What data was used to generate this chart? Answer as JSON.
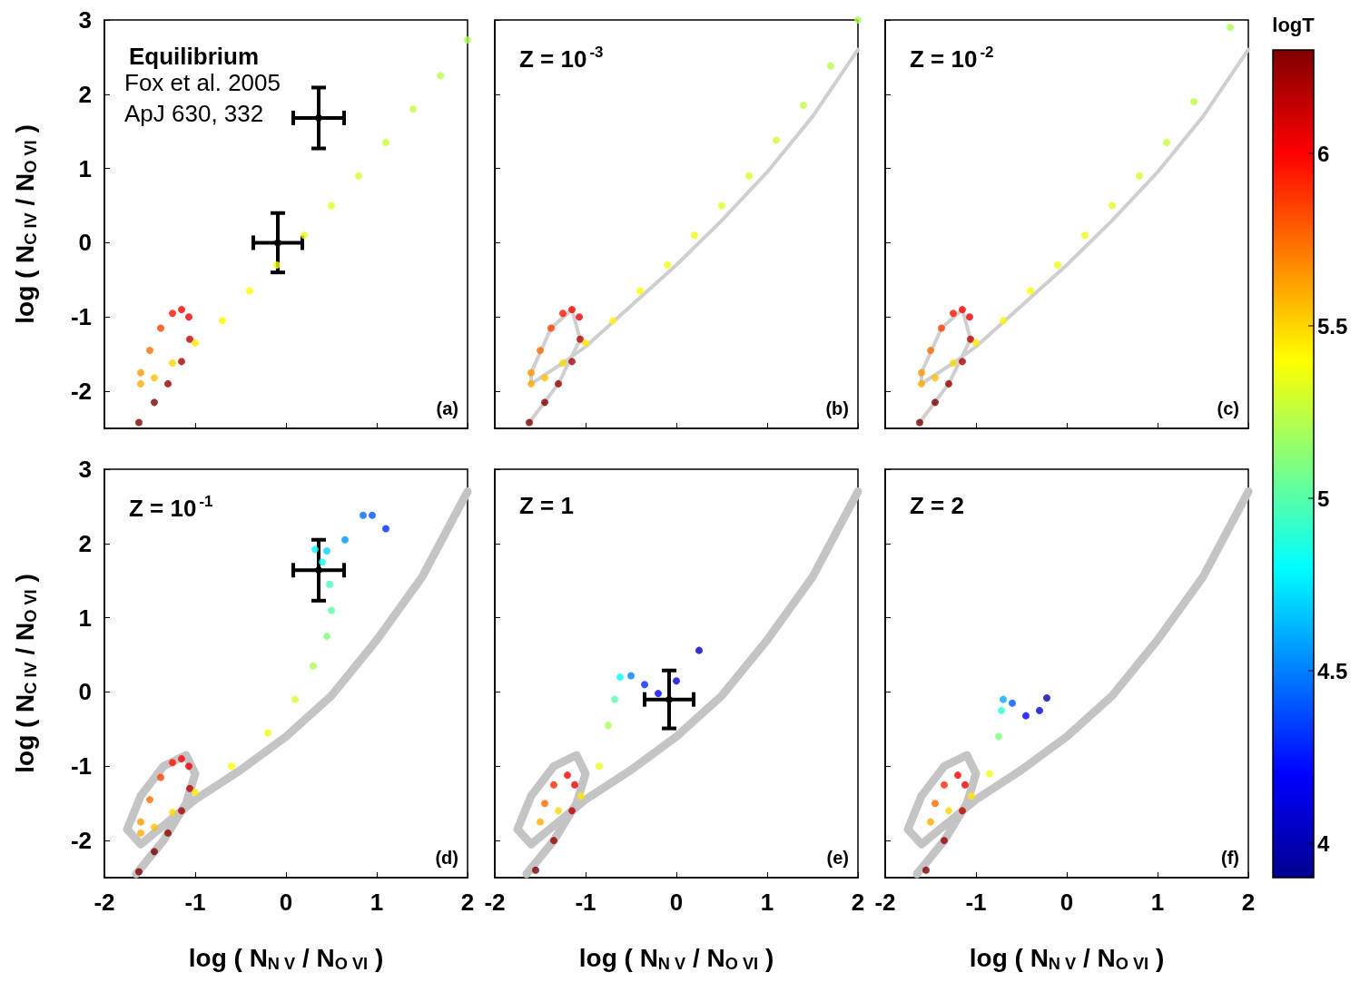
{
  "chart_data": [
    {
      "type": "scatter",
      "title": "Equilibrium",
      "ylabel": "log ( N$_{C IV}$ / N$_{O VI}$ )",
      "xlim": [
        -2,
        2
      ],
      "ylim": [
        -2.5,
        3
      ],
      "xticks": [
        -2,
        -1,
        0,
        1,
        2
      ],
      "yticks": [
        -2,
        -1,
        0,
        1,
        2,
        3
      ],
      "tick_labels": "y",
      "annotations": [
        "(a)",
        "Fox et al. 2005\nApJ 630, 332"
      ],
      "series": [
        {
          "type": "scatter",
          "marker": "circle",
          "x": [
            -1.62,
            -1.45,
            -1.3,
            -1.15,
            -1.06,
            -1.07,
            -1.15,
            -1.25,
            -1.38,
            -1.5,
            -1.6,
            -1.6,
            -1.45,
            -1.25,
            -1.0,
            -0.7,
            -0.4,
            -0.1,
            0.2,
            0.5,
            0.8,
            1.1,
            1.4,
            1.7,
            2.0
          ],
          "values": [
            -2.42,
            -2.15,
            -1.9,
            -1.6,
            -1.3,
            -1.0,
            -0.9,
            -0.95,
            -1.15,
            -1.45,
            -1.75,
            -1.9,
            -1.82,
            -1.62,
            -1.35,
            -1.05,
            -0.65,
            -0.3,
            0.1,
            0.5,
            0.9,
            1.35,
            1.8,
            2.25,
            2.73
          ],
          "colors": [
            "#800000",
            "#800000",
            "#950000",
            "#aa0000",
            "#bf0000",
            "#ea0000",
            "#ff0000",
            "#ff1500",
            "#ff4000",
            "#ff6a00",
            "#ff9500",
            "#ffaa00",
            "#ffbf00",
            "#ffd500",
            "#ffea00",
            "#fff700",
            "#ffff00",
            "#f2ff0d",
            "#eaff15",
            "#e1ff1e",
            "#d5ff2b",
            "#ccff33",
            "#bfff40",
            "#b3ff4d",
            "#aaff55"
          ]
        },
        {
          "type": "scatter",
          "marker": "circle",
          "color": "#000000",
          "x": [
            0.36,
            -0.09
          ],
          "values": [
            1.68,
            0
          ],
          "errors": [
            0.41,
            0.4
          ],
          "xerrors": [
            0.28,
            0.27
          ]
        }
      ]
    },
    {
      "type": "scatter",
      "title": "Z = 10$^{-3}$",
      "xlim": [
        -2,
        2
      ],
      "ylim": [
        -2.5,
        3
      ],
      "xticks": [
        -2,
        -1,
        0,
        1,
        2
      ],
      "yticks": [
        -2,
        -1,
        0,
        1,
        2,
        3
      ],
      "tick_labels": false,
      "annotations": [
        "(b)"
      ],
      "series": [
        {
          "type": "line",
          "color": "#cfcfcf",
          "x": [
            -1.62,
            -1.3,
            -1.06,
            -1.15,
            -1.38,
            -1.6,
            -1.6,
            -1.25,
            -1.0,
            -0.5,
            0,
            0.5,
            1.0,
            1.5,
            2.0
          ],
          "values": [
            -2.42,
            -1.9,
            -1.3,
            -0.9,
            -1.15,
            -1.75,
            -1.9,
            -1.62,
            -1.4,
            -0.85,
            -0.3,
            0.3,
            0.95,
            1.7,
            2.6
          ]
        },
        {
          "type": "scatter",
          "marker": "circle",
          "x": [
            -1.62,
            -1.45,
            -1.3,
            -1.15,
            -1.06,
            -1.07,
            -1.15,
            -1.25,
            -1.38,
            -1.5,
            -1.6,
            -1.6,
            -1.45,
            -1.25,
            -1.0,
            -0.7,
            -0.4,
            -0.1,
            0.2,
            0.5,
            0.8,
            1.1,
            1.4,
            1.7,
            2.0
          ],
          "values": [
            -2.42,
            -2.15,
            -1.9,
            -1.6,
            -1.3,
            -1.0,
            -0.9,
            -0.95,
            -1.15,
            -1.45,
            -1.75,
            -1.9,
            -1.82,
            -1.62,
            -1.35,
            -1.05,
            -0.65,
            -0.3,
            0.1,
            0.5,
            0.9,
            1.38,
            1.85,
            2.38,
            3.0
          ],
          "colors": [
            "#800000",
            "#800000",
            "#950000",
            "#aa0000",
            "#bf0000",
            "#ea0000",
            "#ff0000",
            "#ff1500",
            "#ff4000",
            "#ff6a00",
            "#ff9500",
            "#ffaa00",
            "#ffbf00",
            "#ffd500",
            "#ffea00",
            "#fff700",
            "#ffff00",
            "#f2ff0d",
            "#eaff15",
            "#e1ff1e",
            "#d5ff2b",
            "#ccff33",
            "#bfff40",
            "#b3ff4d",
            "#aaff55"
          ]
        }
      ]
    },
    {
      "type": "scatter",
      "title": "Z = 10$^{-2}$",
      "xlim": [
        -2,
        2
      ],
      "ylim": [
        -2.5,
        3
      ],
      "xticks": [
        -2,
        -1,
        0,
        1,
        2
      ],
      "yticks": [
        -2,
        -1,
        0,
        1,
        2,
        3
      ],
      "tick_labels": false,
      "clim": [
        3.9,
        6.3
      ],
      "clabel": "logT",
      "cticks": [
        4,
        4.5,
        5,
        5.5,
        6
      ],
      "annotations": [
        "(c)"
      ],
      "series": [
        {
          "type": "line",
          "color": "#cfcfcf",
          "x": [
            -1.62,
            -1.3,
            -1.06,
            -1.15,
            -1.38,
            -1.6,
            -1.6,
            -1.25,
            -1.0,
            -0.5,
            0,
            0.5,
            1.0,
            1.5,
            2.0
          ],
          "values": [
            -2.42,
            -1.9,
            -1.3,
            -0.9,
            -1.15,
            -1.75,
            -1.9,
            -1.62,
            -1.4,
            -0.85,
            -0.3,
            0.3,
            0.95,
            1.7,
            2.6
          ]
        },
        {
          "type": "scatter",
          "marker": "circle",
          "x": [
            -1.62,
            -1.45,
            -1.3,
            -1.15,
            -1.06,
            -1.07,
            -1.15,
            -1.25,
            -1.38,
            -1.5,
            -1.6,
            -1.6,
            -1.45,
            -1.25,
            -1.0,
            -0.7,
            -0.4,
            -0.1,
            0.2,
            0.5,
            0.8,
            1.1,
            1.4,
            1.8
          ],
          "values": [
            -2.42,
            -2.15,
            -1.9,
            -1.6,
            -1.3,
            -1.0,
            -0.9,
            -0.95,
            -1.15,
            -1.45,
            -1.75,
            -1.9,
            -1.82,
            -1.62,
            -1.35,
            -1.05,
            -0.65,
            -0.3,
            0.1,
            0.5,
            0.9,
            1.35,
            1.9,
            2.9
          ],
          "colors": [
            "#800000",
            "#800000",
            "#950000",
            "#aa0000",
            "#bf0000",
            "#ea0000",
            "#ff0000",
            "#ff1500",
            "#ff4000",
            "#ff6a00",
            "#ff9500",
            "#ffaa00",
            "#ffbf00",
            "#ffd500",
            "#ffea00",
            "#fff700",
            "#ffff00",
            "#f2ff0d",
            "#eaff15",
            "#e1ff1e",
            "#d5ff2b",
            "#ccff33",
            "#bfff40",
            "#aaff55"
          ]
        }
      ]
    },
    {
      "type": "scatter",
      "title": "Z = 10$^{-1}$",
      "xlabel": "log ( N$_{N V}$ / N$_{O VI}$ )",
      "ylabel": "log ( N$_{C IV}$ / N$_{O VI}$ )",
      "xlim": [
        -2,
        2
      ],
      "ylim": [
        -2.5,
        3
      ],
      "xticks": [
        -2,
        -1,
        0,
        1,
        2
      ],
      "yticks": [
        -2,
        -1,
        0,
        1,
        2,
        3
      ],
      "annotations": [
        "(d)"
      ],
      "series": [
        {
          "type": "line",
          "color": "#c4c4c4",
          "x": [
            -1.65,
            -1.35,
            -1.1,
            -1.0,
            -1.1,
            -1.35,
            -1.6,
            -1.75,
            -1.6,
            -1.3,
            -1.0,
            -0.5,
            0,
            0.5,
            1.0,
            1.5,
            2.0
          ],
          "values": [
            -2.45,
            -2.0,
            -1.5,
            -1.1,
            -0.85,
            -1.0,
            -1.4,
            -1.85,
            -2.05,
            -1.75,
            -1.45,
            -1.05,
            -0.6,
            -0.05,
            0.7,
            1.55,
            2.7
          ]
        },
        {
          "type": "scatter",
          "marker": "circle",
          "x": [
            -1.62,
            -1.45,
            -1.3,
            -1.15,
            -1.06,
            -1.07,
            -1.15,
            -1.25,
            -1.38,
            -1.5,
            -1.6,
            -1.6,
            -1.45,
            -1.25,
            -1.0,
            -0.6,
            -0.2,
            0.1,
            0.3,
            0.45,
            0.5,
            0.48,
            0.4,
            0.32,
            0.45,
            0.65,
            0.85,
            0.95,
            1.1
          ],
          "values": [
            -2.42,
            -2.15,
            -1.9,
            -1.6,
            -1.3,
            -1.0,
            -0.9,
            -0.95,
            -1.15,
            -1.45,
            -1.75,
            -1.9,
            -1.82,
            -1.62,
            -1.35,
            -1.0,
            -0.55,
            -0.1,
            0.35,
            0.75,
            1.1,
            1.45,
            1.75,
            1.92,
            1.9,
            2.05,
            2.38,
            2.38,
            2.2
          ],
          "colors": [
            "#800000",
            "#800000",
            "#950000",
            "#aa0000",
            "#bf0000",
            "#ea0000",
            "#ff0000",
            "#ff1500",
            "#ff4000",
            "#ff6a00",
            "#ff9500",
            "#ffaa00",
            "#ffbf00",
            "#ffd500",
            "#ffea00",
            "#ffff00",
            "#eaff15",
            "#d5ff2b",
            "#aaff55",
            "#80ff80",
            "#55ffaa",
            "#40ffbf",
            "#15ffea",
            "#00ffff",
            "#00d5ff",
            "#0095ff",
            "#006aff",
            "#0055ff",
            "#002bff"
          ]
        },
        {
          "type": "scatter",
          "marker": "circle",
          "color": "#000000",
          "x": [
            0.36
          ],
          "values": [
            1.64
          ],
          "errors": [
            0.41
          ],
          "xerrors": [
            0.28
          ]
        }
      ]
    },
    {
      "type": "scatter",
      "title": "Z = 1",
      "xlabel": "log ( N$_{N V}$ / N$_{O VI}$ )",
      "xlim": [
        -2,
        2
      ],
      "ylim": [
        -2.5,
        3
      ],
      "xticks": [
        -2,
        -1,
        0,
        1,
        2
      ],
      "yticks": [
        -2,
        -1,
        0,
        1,
        2,
        3
      ],
      "tick_labels": "x",
      "annotations": [
        "(e)"
      ],
      "series": [
        {
          "type": "line",
          "color": "#c4c4c4",
          "x": [
            -1.65,
            -1.35,
            -1.1,
            -1.0,
            -1.1,
            -1.35,
            -1.6,
            -1.75,
            -1.6,
            -1.3,
            -1.0,
            -0.5,
            0,
            0.5,
            1.0,
            1.5,
            2.0
          ],
          "values": [
            -2.45,
            -2.0,
            -1.5,
            -1.1,
            -0.85,
            -1.0,
            -1.4,
            -1.85,
            -2.05,
            -1.75,
            -1.45,
            -1.05,
            -0.6,
            -0.05,
            0.7,
            1.55,
            2.7
          ]
        },
        {
          "type": "scatter",
          "marker": "circle",
          "x": [
            -1.55,
            -1.35,
            -1.15,
            -1.12,
            -1.2,
            -1.35,
            -1.45,
            -1.5,
            -1.3,
            -1.05,
            -0.85,
            -0.75,
            -0.68,
            -0.62,
            -0.5,
            -0.35,
            -0.2,
            0.0,
            0.25
          ],
          "values": [
            -2.4,
            -2.0,
            -1.6,
            -1.25,
            -1.12,
            -1.25,
            -1.5,
            -1.75,
            -1.6,
            -1.4,
            -1.0,
            -0.45,
            -0.1,
            0.2,
            0.22,
            0.1,
            -0.02,
            0.15,
            0.56
          ],
          "colors": [
            "#800000",
            "#950000",
            "#bf0000",
            "#ea0000",
            "#ff0000",
            "#ff2b00",
            "#ff6a00",
            "#ffaa00",
            "#ffd500",
            "#ffea00",
            "#eaff15",
            "#aaff55",
            "#55ffaa",
            "#00ffff",
            "#0080ff",
            "#002bff",
            "#0000ff",
            "#0000da",
            "#0000c7"
          ]
        },
        {
          "type": "scatter",
          "marker": "circle",
          "color": "#000000",
          "x": [
            -0.08
          ],
          "values": [
            -0.1
          ],
          "errors": [
            0.39
          ],
          "xerrors": [
            0.27
          ]
        }
      ]
    },
    {
      "type": "scatter",
      "title": "Z = 2",
      "xlabel": "log ( N$_{N V}$ / N$_{O VI}$ )",
      "xlim": [
        -2,
        2
      ],
      "ylim": [
        -2.5,
        3
      ],
      "xticks": [
        -2,
        -1,
        0,
        1,
        2
      ],
      "yticks": [
        -2,
        -1,
        0,
        1,
        2,
        3
      ],
      "tick_labels": "x",
      "annotations": [
        "(f)"
      ],
      "series": [
        {
          "type": "line",
          "color": "#c4c4c4",
          "x": [
            -1.65,
            -1.35,
            -1.1,
            -1.0,
            -1.1,
            -1.35,
            -1.6,
            -1.75,
            -1.6,
            -1.3,
            -1.0,
            -0.5,
            0,
            0.5,
            1.0,
            1.5,
            2.0
          ],
          "values": [
            -2.45,
            -2.0,
            -1.5,
            -1.1,
            -0.85,
            -1.0,
            -1.4,
            -1.85,
            -2.05,
            -1.75,
            -1.45,
            -1.05,
            -0.6,
            -0.05,
            0.7,
            1.55,
            2.7
          ]
        },
        {
          "type": "scatter",
          "marker": "circle",
          "x": [
            -1.55,
            -1.35,
            -1.15,
            -1.12,
            -1.2,
            -1.35,
            -1.45,
            -1.5,
            -1.3,
            -1.05,
            -0.85,
            -0.75,
            -0.72,
            -0.7,
            -0.6,
            -0.45,
            -0.3,
            -0.22
          ],
          "values": [
            -2.4,
            -2.0,
            -1.6,
            -1.25,
            -1.12,
            -1.25,
            -1.5,
            -1.75,
            -1.6,
            -1.4,
            -1.1,
            -0.6,
            -0.25,
            -0.1,
            -0.15,
            -0.32,
            -0.25,
            -0.08
          ],
          "colors": [
            "#800000",
            "#950000",
            "#bf0000",
            "#ea0000",
            "#ff0000",
            "#ff2b00",
            "#ff6a00",
            "#ffaa00",
            "#ffd500",
            "#ffea00",
            "#eaff15",
            "#80ff80",
            "#2bffd5",
            "#00aaff",
            "#0055ff",
            "#0000ff",
            "#0000da",
            "#0000b4"
          ]
        }
      ]
    }
  ]
}
